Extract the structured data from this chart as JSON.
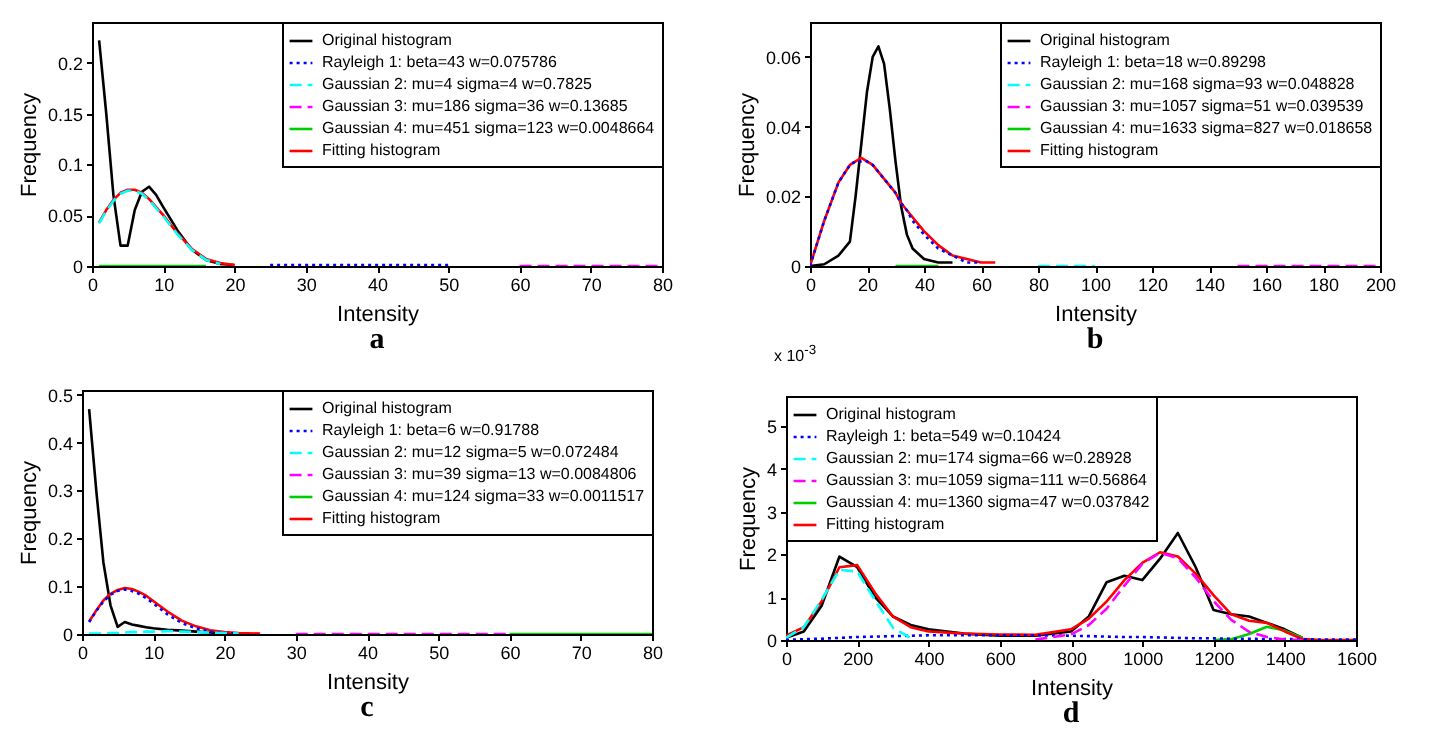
{
  "chart_data": [
    {
      "type": "line",
      "title": "a",
      "xlabel": "Intensity",
      "ylabel": "Frequency",
      "legend": "top right",
      "x": [
        1,
        2,
        3,
        4,
        5,
        6,
        7,
        8,
        9,
        10,
        12,
        14,
        16,
        18,
        20,
        25,
        30,
        40,
        50,
        60,
        70,
        80
      ],
      "xlim": [
        0,
        80
      ],
      "xticks": [
        0,
        10,
        20,
        30,
        40,
        50,
        60,
        70,
        80
      ],
      "ylim": [
        0,
        0.24
      ],
      "yticks": [
        0,
        0.05,
        0.1,
        0.15,
        0.2
      ],
      "series": [
        {
          "name": "Original histogram",
          "color": "#000000",
          "line_style": "solid",
          "values": [
            0.222,
            0.15,
            0.07,
            0.02,
            0.02,
            0.055,
            0.073,
            0.078,
            0.07,
            0.058,
            0.035,
            0.016,
            0.006,
            0.002,
            0.001,
            null,
            null,
            null,
            null,
            null,
            null,
            null
          ]
        },
        {
          "name": "Rayleigh 1: beta=43 w=0.075786",
          "color": "#0000ff",
          "line_style": "dotted",
          "values": [
            null,
            null,
            null,
            null,
            null,
            null,
            null,
            null,
            null,
            null,
            null,
            null,
            null,
            null,
            null,
            0.001,
            0.001,
            0.001,
            0.001,
            null,
            null,
            null
          ]
        },
        {
          "name": "Gaussian 2: mu=4 sigma=4 w=0.7825",
          "color": "#00ffff",
          "line_style": "dashed",
          "values": [
            0.042,
            0.054,
            0.064,
            0.071,
            0.074,
            0.074,
            0.071,
            0.065,
            0.057,
            0.049,
            0.031,
            0.016,
            0.006,
            0.002,
            null,
            null,
            null,
            null,
            null,
            null,
            null,
            null
          ]
        },
        {
          "name": "Gaussian 3: mu=186 sigma=36 w=0.13685",
          "color": "#ff00ff",
          "line_style": "dashed",
          "values": [
            null,
            null,
            null,
            null,
            null,
            null,
            null,
            null,
            null,
            null,
            null,
            null,
            null,
            null,
            null,
            null,
            null,
            null,
            null,
            0,
            0,
            0
          ]
        },
        {
          "name": "Gaussian 4: mu=451 sigma=123 w=0.0048664",
          "color": "#00cc00",
          "line_style": "solid",
          "values": [
            0,
            0,
            0,
            0,
            0,
            0,
            0,
            0,
            0,
            0,
            0,
            0,
            0,
            null,
            null,
            null,
            null,
            null,
            null,
            null,
            null,
            null
          ]
        },
        {
          "name": "Fitting histogram",
          "color": "#ff0000",
          "line_style": "solid",
          "values": [
            0.043,
            0.055,
            0.065,
            0.072,
            0.075,
            0.075,
            0.072,
            0.066,
            0.058,
            0.05,
            0.032,
            0.017,
            0.007,
            0.003,
            0.001,
            null,
            null,
            null,
            null,
            null,
            null,
            null
          ]
        }
      ]
    },
    {
      "type": "line",
      "title": "b",
      "xlabel": "Intensity",
      "ylabel": "Frequency",
      "legend": "top right",
      "x": [
        0,
        5,
        10,
        14,
        16,
        18,
        20,
        22,
        24,
        26,
        28,
        30,
        32,
        34,
        36,
        40,
        45,
        50,
        55,
        60,
        65,
        80,
        100,
        150,
        200
      ],
      "xlim": [
        0,
        200
      ],
      "xticks": [
        0,
        20,
        40,
        60,
        80,
        100,
        120,
        140,
        160,
        180,
        200
      ],
      "ylim": [
        0,
        0.07
      ],
      "yticks": [
        0,
        0.02,
        0.04,
        0.06
      ],
      "series": [
        {
          "name": "Original histogram",
          "color": "#000000",
          "line_style": "solid",
          "values": [
            0,
            0.0005,
            0.003,
            0.007,
            0.02,
            0.035,
            0.05,
            0.06,
            0.063,
            0.058,
            0.045,
            0.03,
            0.017,
            0.009,
            0.005,
            0.002,
            0.001,
            0.001,
            null,
            null,
            null,
            null,
            null,
            null,
            null
          ]
        },
        {
          "name": "Rayleigh 1: beta=18 w=0.89298",
          "color": "#0000ff",
          "line_style": "dotted",
          "values": [
            0,
            0.013,
            0.024,
            0.029,
            0.03,
            0.03,
            0.03,
            0.029,
            0.027,
            0.025,
            0.023,
            0.021,
            0.018,
            0.016,
            0.013,
            0.009,
            0.005,
            0.003,
            0.001,
            0.001,
            null,
            null,
            null,
            null,
            null
          ]
        },
        {
          "name": "Gaussian 2: mu=168 sigma=93 w=0.048828",
          "color": "#00ffff",
          "line_style": "dashed",
          "values": [
            null,
            null,
            null,
            null,
            null,
            null,
            null,
            null,
            null,
            null,
            null,
            null,
            null,
            null,
            null,
            null,
            null,
            null,
            null,
            null,
            null,
            0,
            0,
            null,
            null
          ]
        },
        {
          "name": "Gaussian 3: mu=1057 sigma=51 w=0.039539",
          "color": "#ff00ff",
          "line_style": "dashed",
          "values": [
            null,
            null,
            null,
            null,
            null,
            null,
            null,
            null,
            null,
            null,
            null,
            null,
            null,
            null,
            null,
            null,
            null,
            null,
            null,
            null,
            null,
            null,
            null,
            0,
            0
          ]
        },
        {
          "name": "Gaussian 4: mu=1633 sigma=827 w=0.018658",
          "color": "#00cc00",
          "line_style": "solid",
          "values": [
            null,
            null,
            null,
            null,
            null,
            null,
            null,
            null,
            null,
            null,
            null,
            0,
            0,
            0,
            0,
            0,
            0,
            null,
            null,
            null,
            null,
            null,
            null,
            null,
            null
          ]
        },
        {
          "name": "Fitting histogram",
          "color": "#ff0000",
          "line_style": "solid",
          "values": [
            0,
            0.013,
            0.024,
            0.029,
            0.03,
            0.031,
            0.03,
            0.029,
            0.027,
            0.025,
            0.023,
            0.021,
            0.018,
            0.016,
            0.014,
            0.01,
            0.006,
            0.003,
            0.002,
            0.001,
            0.001,
            null,
            null,
            null,
            null
          ]
        }
      ]
    },
    {
      "type": "line",
      "title": "c",
      "xlabel": "Intensity",
      "ylabel": "Frequency",
      "legend": "top right",
      "x": [
        1,
        2,
        3,
        4,
        5,
        6,
        7,
        8,
        9,
        10,
        12,
        14,
        16,
        18,
        20,
        22,
        25,
        30,
        40,
        50,
        60,
        70,
        80
      ],
      "xlim": [
        0,
        80
      ],
      "xticks": [
        0,
        10,
        20,
        30,
        40,
        50,
        60,
        70,
        80
      ],
      "ylim": [
        0,
        0.51
      ],
      "yticks": [
        0,
        0.1,
        0.2,
        0.3,
        0.4,
        0.5
      ],
      "series": [
        {
          "name": "Original histogram",
          "color": "#000000",
          "line_style": "solid",
          "values": [
            0.47,
            0.3,
            0.15,
            0.06,
            0.015,
            0.025,
            0.02,
            0.017,
            0.014,
            0.012,
            0.009,
            0.007,
            0.005,
            0.003,
            0.001,
            0.001,
            null,
            null,
            null,
            null,
            null,
            null,
            null
          ]
        },
        {
          "name": "Rayleigh 1: beta=6 w=0.91788",
          "color": "#0000ff",
          "line_style": "dotted",
          "values": [
            0.025,
            0.048,
            0.068,
            0.082,
            0.09,
            0.093,
            0.09,
            0.084,
            0.075,
            0.064,
            0.041,
            0.023,
            0.012,
            0.005,
            0.002,
            0.001,
            null,
            null,
            null,
            null,
            null,
            null,
            null
          ]
        },
        {
          "name": "Gaussian 2: mu=12 sigma=5 w=0.072484",
          "color": "#00ffff",
          "line_style": "dashed",
          "values": [
            0.001,
            0.001,
            0.001,
            0.002,
            0.002,
            0.003,
            0.004,
            0.004,
            0.005,
            0.005,
            0.006,
            0.005,
            0.004,
            0.003,
            0.002,
            0.001,
            null,
            null,
            null,
            null,
            null,
            null,
            null
          ]
        },
        {
          "name": "Gaussian 3: mu=39 sigma=13 w=0.0084806",
          "color": "#ff00ff",
          "line_style": "dashed",
          "values": [
            null,
            null,
            null,
            null,
            null,
            null,
            null,
            null,
            null,
            null,
            null,
            null,
            null,
            null,
            null,
            null,
            null,
            0,
            0,
            0,
            0,
            null,
            null
          ]
        },
        {
          "name": "Gaussian 4: mu=124 sigma=33 w=0.0011517",
          "color": "#00cc00",
          "line_style": "solid",
          "values": [
            null,
            null,
            null,
            null,
            null,
            null,
            null,
            null,
            null,
            null,
            null,
            null,
            null,
            null,
            null,
            null,
            null,
            null,
            null,
            null,
            0,
            0,
            0
          ]
        },
        {
          "name": "Fitting histogram",
          "color": "#ff0000",
          "line_style": "solid",
          "values": [
            0.026,
            0.049,
            0.07,
            0.084,
            0.092,
            0.096,
            0.094,
            0.088,
            0.08,
            0.069,
            0.047,
            0.028,
            0.016,
            0.008,
            0.004,
            0.002,
            0.001,
            null,
            null,
            null,
            null,
            null,
            null
          ]
        }
      ]
    },
    {
      "type": "line",
      "title": "d",
      "xlabel": "Intensity",
      "ylabel": "Frequency",
      "legend": "top left",
      "annotations": [
        "x 10$^{-3}$"
      ],
      "x": [
        0,
        50,
        100,
        150,
        200,
        250,
        300,
        350,
        400,
        500,
        600,
        700,
        800,
        850,
        900,
        950,
        1000,
        1050,
        1100,
        1150,
        1200,
        1250,
        1300,
        1350,
        1400,
        1450,
        1500,
        1600
      ],
      "xlim": [
        0,
        1600
      ],
      "xticks": [
        0,
        200,
        400,
        600,
        800,
        1000,
        1200,
        1400,
        1600
      ],
      "ylim": [
        0,
        5.7
      ],
      "yticks": [
        0,
        1,
        2,
        3,
        4,
        5
      ],
      "series": [
        {
          "name": "Original histogram",
          "color": "#000000",
          "line_style": "solid",
          "values": [
            0.05,
            0.2,
            0.8,
            1.95,
            1.7,
            1.0,
            0.55,
            0.35,
            0.25,
            0.15,
            0.1,
            0.1,
            0.2,
            0.55,
            1.35,
            1.5,
            1.4,
            1.9,
            2.5,
            1.7,
            0.7,
            0.6,
            0.55,
            0.4,
            0.25,
            0.05,
            null,
            null
          ]
        },
        {
          "name": "Rayleigh 1: beta=549 w=0.10424",
          "color": "#0000ff",
          "line_style": "dotted",
          "values": [
            0,
            0.02,
            0.03,
            0.05,
            0.07,
            0.08,
            0.09,
            0.1,
            0.11,
            0.11,
            0.11,
            0.11,
            0.1,
            0.09,
            0.08,
            0.07,
            0.07,
            0.06,
            0.05,
            0.04,
            0.04,
            0.03,
            0.03,
            0.02,
            0.02,
            0.02,
            0.01,
            0.01
          ]
        },
        {
          "name": "Gaussian 2: mu=174 sigma=66 w=0.28928",
          "color": "#00ffff",
          "line_style": "dashed",
          "values": [
            0.05,
            0.3,
            0.94,
            1.64,
            1.6,
            0.93,
            0.29,
            0.05,
            null,
            null,
            null,
            null,
            null,
            null,
            null,
            null,
            null,
            null,
            null,
            null,
            null,
            null,
            null,
            null,
            null,
            null,
            null,
            null
          ]
        },
        {
          "name": "Gaussian 3: mu=1059 sigma=111 w=0.56864",
          "color": "#ff00ff",
          "line_style": "dashed",
          "values": [
            null,
            null,
            null,
            null,
            null,
            null,
            null,
            null,
            null,
            null,
            null,
            0.01,
            0.13,
            0.35,
            0.73,
            1.27,
            1.78,
            2.04,
            1.91,
            1.46,
            0.91,
            0.47,
            0.19,
            0.07,
            0.01,
            0,
            null,
            null
          ]
        },
        {
          "name": "Gaussian 4: mu=1360 sigma=47 w=0.037842",
          "color": "#00cc00",
          "line_style": "solid",
          "values": [
            null,
            null,
            null,
            null,
            null,
            null,
            null,
            null,
            null,
            null,
            null,
            null,
            null,
            null,
            null,
            null,
            null,
            null,
            null,
            null,
            0,
            0.02,
            0.14,
            0.31,
            0.22,
            0.05,
            null,
            null
          ]
        },
        {
          "name": "Fitting histogram",
          "color": "#ff0000",
          "line_style": "solid",
          "values": [
            0.1,
            0.3,
            0.9,
            1.7,
            1.75,
            1.1,
            0.55,
            0.3,
            0.2,
            0.15,
            0.13,
            0.12,
            0.25,
            0.5,
            0.9,
            1.4,
            1.8,
            2.05,
            1.95,
            1.55,
            1.05,
            0.6,
            0.45,
            0.4,
            0.2,
            0.02,
            0,
            0
          ]
        }
      ]
    }
  ]
}
